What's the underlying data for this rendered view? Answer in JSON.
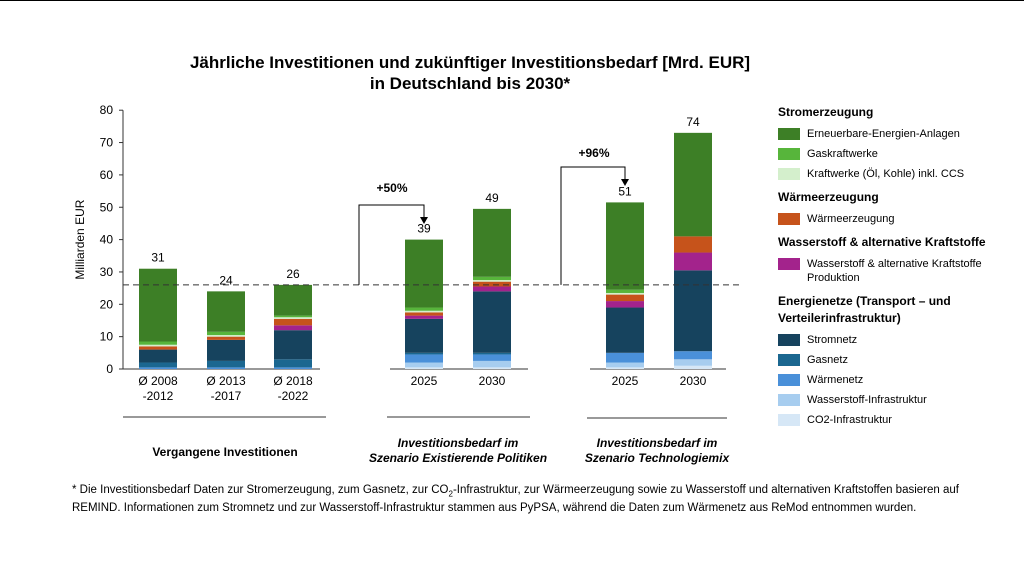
{
  "title_line1": "Jährliche Investitionen und zukünftiger Investitionsbedarf [Mrd. EUR]",
  "title_line2": "in Deutschland bis 2030*",
  "footnote_pre": "* Die Investitionsbedarf Daten zur Stromerzeugung, zum Gasnetz, zur CO",
  "footnote_sub": "2",
  "footnote_post": "-Infrastruktur, zur Wärmeerzeugung sowie zu Wasserstoff und alternativen Kraftstoffen basieren auf REMIND. Informationen zum Stromnetz und zur Wasserstoff-Infrastruktur stammen aus PyPSA, während die Daten zum Wärmenetz aus ReMod entnommen wurden.",
  "legend": [
    {
      "group": "Stromerzeugung",
      "items": [
        {
          "label": "Erneuerbare-Energien-Anlagen",
          "color": "#3d7f26"
        },
        {
          "label": "Gaskraftwerke",
          "color": "#57b53b"
        },
        {
          "label": "Kraftwerke (Öl, Kohle)  inkl. CCS",
          "color": "#d4efcc"
        }
      ]
    },
    {
      "group": "Wärmeerzeugung",
      "items": [
        {
          "label": "Wärmeerzeugung",
          "color": "#c6531b"
        }
      ]
    },
    {
      "group": "Wasserstoff & alternative Kraftstoffe",
      "items": [
        {
          "label": "Wasserstoff & alternative Kraftstoffe Produktion",
          "color": "#a3238c"
        }
      ]
    },
    {
      "group": "Energienetze (Transport – und Verteilerinfrastruktur)",
      "items": [
        {
          "label": "Stromnetz",
          "color": "#16435e"
        },
        {
          "label": "Gasnetz",
          "color": "#1b6790"
        },
        {
          "label": "Wärmenetz",
          "color": "#4a90d9"
        },
        {
          "label": "Wasserstoff-Infrastruktur",
          "color": "#a7cdef"
        },
        {
          "label": "CO2-Infrastruktur",
          "color": "#d6e7f6"
        }
      ]
    }
  ],
  "chart_data": {
    "type": "bar",
    "stacked": true,
    "ylabel": "Milliarden EUR",
    "ylim": [
      0,
      80
    ],
    "yticks": [
      0,
      10,
      20,
      30,
      40,
      50,
      60,
      70,
      80
    ],
    "reference_line": 26,
    "categories": [
      {
        "label": [
          "Ø 2008",
          "-2012"
        ],
        "total": "31"
      },
      {
        "label": [
          "Ø 2013",
          "-2017"
        ],
        "total": "24"
      },
      {
        "label": [
          "Ø 2018",
          "-2022"
        ],
        "total": "26"
      },
      {
        "label": [
          "2025"
        ],
        "total": "39"
      },
      {
        "label": [
          "2030"
        ],
        "total": "49"
      },
      {
        "label": [
          "2025"
        ],
        "total": "51"
      },
      {
        "label": [
          "2030"
        ],
        "total": "74"
      }
    ],
    "groups": [
      {
        "label": [
          "Vergangene Investitionen"
        ],
        "italic": false
      },
      {
        "label": [
          "Investitionsbedarf im",
          "Szenario Existierende Politiken"
        ],
        "italic": true
      },
      {
        "label": [
          "Investitionsbedarf im",
          "Szenario Technologiemix"
        ],
        "italic": true
      }
    ],
    "growth": [
      {
        "label": "+50%",
        "from": 2,
        "to": 3
      },
      {
        "label": "+96%",
        "from": 2,
        "to": 5
      }
    ],
    "series": [
      {
        "name": "CO2-Infrastruktur",
        "color": "#d6e7f6",
        "values": [
          0.0,
          0.0,
          0.0,
          0.5,
          0.5,
          0.5,
          1.0
        ]
      },
      {
        "name": "Wasserstoff-Infrastruktur",
        "color": "#a7cdef",
        "values": [
          0.0,
          0.0,
          0.0,
          1.5,
          2.0,
          1.5,
          2.0
        ]
      },
      {
        "name": "Wärmenetz",
        "color": "#4a90d9",
        "values": [
          0.5,
          0.5,
          0.5,
          2.5,
          2.0,
          3.0,
          2.5
        ]
      },
      {
        "name": "Gasnetz",
        "color": "#1b6790",
        "values": [
          1.5,
          2.0,
          2.5,
          0.5,
          0.5,
          0.0,
          0.0
        ]
      },
      {
        "name": "Stromnetz",
        "color": "#16435e",
        "values": [
          4.0,
          6.5,
          9.0,
          10.5,
          19.0,
          14.0,
          25.0
        ]
      },
      {
        "name": "Wasserstoff & alternative Kraftstoffe Produktion",
        "color": "#a3238c",
        "values": [
          0.0,
          0.0,
          1.5,
          1.0,
          1.5,
          2.0,
          5.5
        ]
      },
      {
        "name": "Wärmeerzeugung",
        "color": "#c6531b",
        "values": [
          1.0,
          1.0,
          2.0,
          1.0,
          1.5,
          2.0,
          5.0
        ]
      },
      {
        "name": "Kraftwerke (Öl, Kohle)  inkl. CCS",
        "color": "#d4efcc",
        "values": [
          0.5,
          0.5,
          0.5,
          0.5,
          0.5,
          0.5,
          0.0
        ]
      },
      {
        "name": "Gaskraftwerke",
        "color": "#57b53b",
        "values": [
          1.0,
          1.0,
          0.5,
          1.0,
          1.0,
          1.0,
          0.0
        ]
      },
      {
        "name": "Erneuerbare-Energien-Anlagen",
        "color": "#3d7f26",
        "values": [
          22.5,
          12.5,
          9.5,
          21.0,
          21.0,
          27.0,
          32.0
        ]
      }
    ]
  }
}
